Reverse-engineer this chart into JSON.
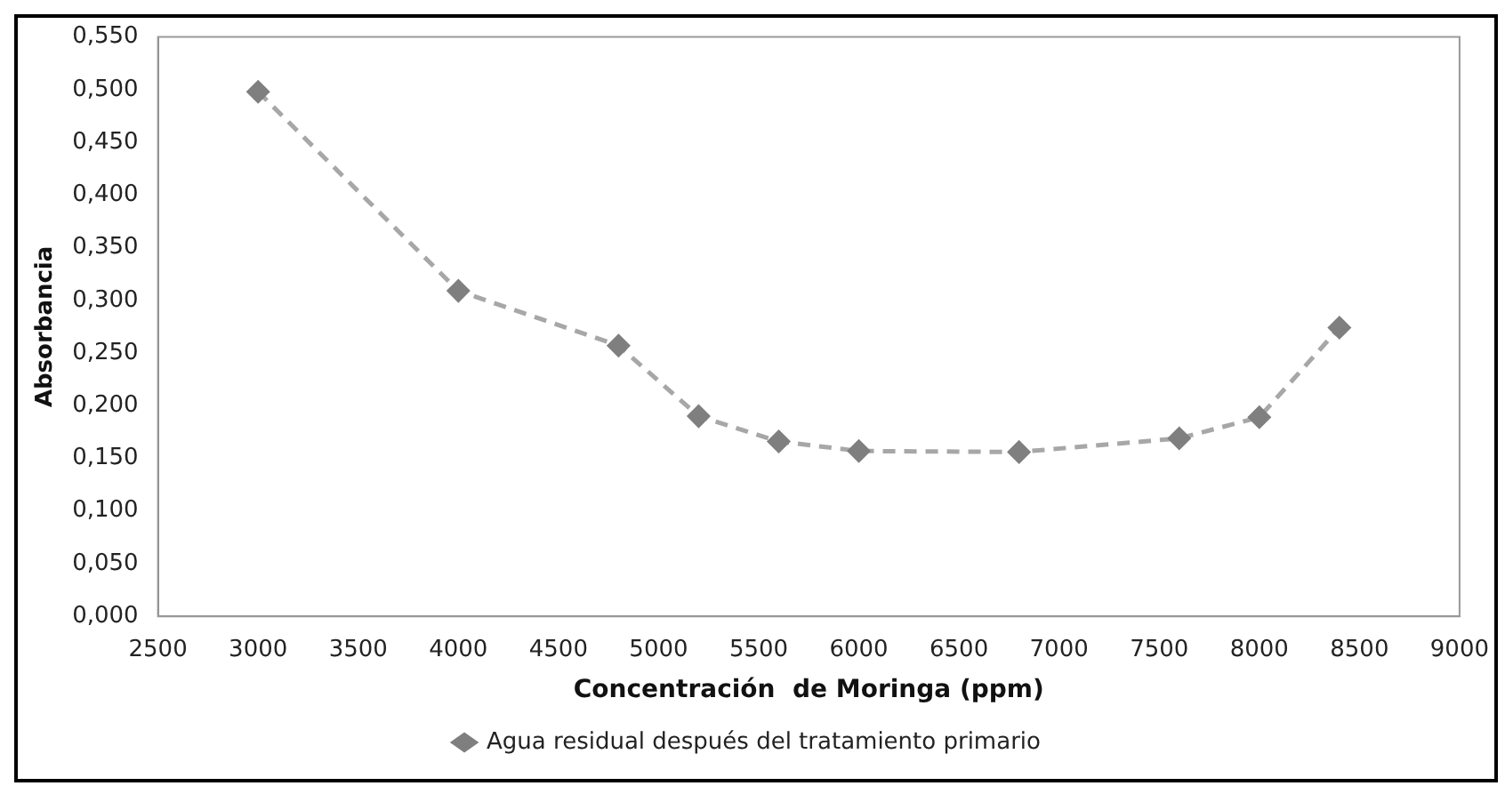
{
  "chart_data": {
    "type": "line",
    "xlabel": "Concentración  de Moringa (ppm)",
    "ylabel": "Absorbancia",
    "x": [
      3000,
      4000,
      4800,
      5200,
      5600,
      6000,
      6800,
      7600,
      8000,
      8400
    ],
    "series": [
      {
        "name": "Agua residual después del tratamiento primario",
        "color": "#7f7f7f",
        "values": [
          0.498,
          0.309,
          0.257,
          0.19,
          0.166,
          0.157,
          0.156,
          0.169,
          0.189,
          0.274
        ]
      }
    ],
    "xlim": [
      2500,
      9000
    ],
    "xticks": [
      2500,
      3000,
      3500,
      4000,
      4500,
      5000,
      5500,
      6000,
      6500,
      7000,
      7500,
      8000,
      8500,
      9000
    ],
    "ylim": [
      0,
      0.55
    ],
    "yticks": [
      {
        "value": 0,
        "label": "0,000"
      },
      {
        "value": 0.05,
        "label": "0,050"
      },
      {
        "value": 0.1,
        "label": "0,100"
      },
      {
        "value": 0.15,
        "label": "0,150"
      },
      {
        "value": 0.2,
        "label": "0,200"
      },
      {
        "value": 0.25,
        "label": "0,250"
      },
      {
        "value": 0.3,
        "label": "0,300"
      },
      {
        "value": 0.35,
        "label": "0,350"
      },
      {
        "value": 0.4,
        "label": "0,400"
      },
      {
        "value": 0.45,
        "label": "0,450"
      },
      {
        "value": 0.5,
        "label": "0,500"
      },
      {
        "value": 0.55,
        "label": "0,550"
      }
    ],
    "grid": false,
    "legend": "bottom",
    "marker": "diamond",
    "line_style": "dashed"
  }
}
